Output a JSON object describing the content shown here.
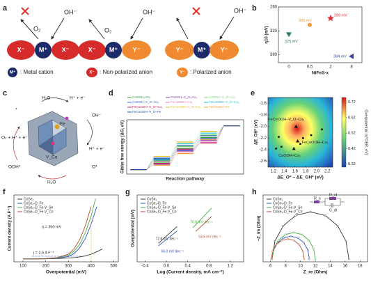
{
  "figure": {
    "a": {
      "label": "a",
      "ions": [
        "X⁻",
        "M⁺",
        "X⁻",
        "X⁻",
        "M⁺",
        "Y⁻",
        "Y⁻",
        "M⁺",
        "Y⁻"
      ],
      "products": [
        "O₂",
        "O₂"
      ],
      "reactants": [
        "OH⁻",
        "OH⁻",
        "OH⁻"
      ],
      "legend": [
        {
          "symbol": "M⁺",
          "text": ": Metal cation"
        },
        {
          "symbol": "X⁻",
          "text": ": Non-polarized anion"
        },
        {
          "symbol": "Y⁻",
          "text": ": Polarized anion"
        }
      ]
    },
    "c": {
      "label": "c",
      "texts": [
        "H₂O",
        "H⁺ + e⁻",
        "OH⁻",
        "O₂ + H⁺ + e⁻",
        "*",
        "Fe",
        "V_Co",
        "H⁺ + e⁻",
        "OOH*",
        "H₂O",
        "O*"
      ]
    }
  },
  "chart_data": [
    {
      "panel": "b",
      "type": "scatter",
      "x_label": "NiFeS-x",
      "y_label": "η10 (mV)",
      "categories": [
        "0",
        "0.5",
        "2",
        "8"
      ],
      "values": [
        329,
        305,
        288,
        384
      ],
      "value_labels": [
        "329 mV",
        "305 mV",
        "288 mV",
        "384 mV"
      ],
      "colors": [
        "#2e7d4f",
        "#f09a40",
        "#e03030",
        "#3a44a0"
      ],
      "ylim": [
        400,
        260
      ],
      "yticks": [
        260,
        320,
        380
      ]
    },
    {
      "panel": "d",
      "type": "energy",
      "x_label": "Reaction pathway",
      "y_label": "Gibbs free energy (ΔG, eV)",
      "ylim": [
        -0.5,
        5.6
      ],
      "series": [
        {
          "name": "CoOOH–Co₁",
          "color": "#2a9d3a",
          "values": [
            0,
            1.0,
            2.4,
            3.6,
            4.92
          ]
        },
        {
          "name": "CoOOH–V_O–Co₁",
          "color": "#8e44ad",
          "values": [
            0,
            0.6,
            2.1,
            3.3,
            4.92
          ]
        },
        {
          "name": "CoOOH–V_O–Co₂",
          "color": "#7dd87d",
          "values": [
            0,
            0.8,
            2.6,
            3.9,
            4.92
          ]
        },
        {
          "name": "CoOOH–V_O–Co₃",
          "color": "#3a6fd8",
          "values": [
            0,
            1.3,
            2.2,
            3.5,
            4.92
          ]
        },
        {
          "name": "FeCoOOH–Co₁",
          "color": "#e377c2",
          "values": [
            0,
            0.9,
            2.0,
            3.1,
            4.92
          ]
        },
        {
          "name": "FeCoOOH–V_O–Co₂",
          "color": "#17becf",
          "values": [
            0,
            1.1,
            2.9,
            4.1,
            4.92
          ]
        },
        {
          "name": "FeCoOOH–V_O–Co₁",
          "color": "#c2185b",
          "values": [
            0,
            0.7,
            2.3,
            3.0,
            4.92
          ]
        },
        {
          "name": "FeCoOOH–V_O–Co₃",
          "color": "#e0c020",
          "values": [
            0,
            1.5,
            3.1,
            4.3,
            4.92
          ]
        },
        {
          "name": "FeCoOOH–Fe",
          "color": "#f0a030",
          "values": [
            0,
            0.5,
            1.8,
            3.4,
            4.92
          ]
        },
        {
          "name": "FeCoOOH–V_O–Fe",
          "color": "#1f4fa0",
          "values": [
            0,
            1.2,
            2.7,
            3.8,
            4.92
          ]
        }
      ]
    },
    {
      "panel": "e",
      "type": "contour",
      "x_label": "ΔE_O* − ΔE_OH* (eV)",
      "y_label": "ΔE_OH* (eV)",
      "colorbar_label": "Overpotential (η^OER, eV)",
      "xlim": [
        1.1,
        2.3
      ],
      "xticks": [
        1.2,
        1.4,
        1.6,
        1.8,
        {
          "value": 2,
          "label": "2.0"
        },
        2.2
      ],
      "ylim": [
        -2.7,
        -1.5
      ],
      "yticks": [
        -1.6,
        -1.8,
        {
          "value": -2,
          "label": "-2.0"
        },
        -2.2,
        -2.4,
        -2.6
      ],
      "clim": [
        0.3,
        0.75
      ],
      "cticks": [
        0.72,
        0.62,
        0.52,
        0.42,
        0.32
      ],
      "labeled_points": {
        "names": [
          "FeCoOOH–V_O–Co₁",
          "FeCoOOH–Co₁",
          "CoOOH–Co₁"
        ],
        "x": [
          1.62,
          1.65,
          1.58
        ],
        "values": [
          -2.0,
          -2.25,
          -2.38
        ]
      },
      "other_points": {
        "x": [
          1.3,
          1.35,
          1.7,
          1.75,
          1.9,
          2.1,
          1.25
        ],
        "values": [
          -2.18,
          -2.35,
          -2.3,
          -2.2,
          -2.15,
          -2.05,
          -2.38
        ]
      }
    },
    {
      "panel": "f",
      "type": "line",
      "x_label": "Overpotential (mV)",
      "y_label": "Current density (A F⁻¹)",
      "xlim": [
        60,
        520
      ],
      "xticks": [
        100,
        200,
        300,
        400,
        500
      ],
      "ylim": [
        -2,
        55
      ],
      "annotations": [
        "η = 350 mV",
        "j = 2.5 A F⁻¹"
      ],
      "series": [
        {
          "name": "CoSe₂",
          "color": "#333333",
          "x": [
            100,
            150,
            200,
            250,
            300,
            325,
            350,
            375,
            400,
            425,
            450
          ],
          "values": [
            0.5,
            0.5,
            0.6,
            0.8,
            1.2,
            1.6,
            2.2,
            3,
            4.5,
            6.5,
            9
          ]
        },
        {
          "name": "CoSe₂-D_Fe",
          "color": "#3050c0",
          "x": [
            100,
            150,
            200,
            250,
            300,
            325,
            350,
            375,
            400,
            425
          ],
          "values": [
            0.5,
            0.5,
            0.6,
            1,
            2.5,
            5,
            10,
            18,
            30,
            45
          ]
        },
        {
          "name": "CoSe₂-D_Fe-V_Se",
          "color": "#40b040",
          "x": [
            100,
            150,
            200,
            250,
            300,
            325,
            350,
            375,
            400,
            420
          ],
          "values": [
            0.5,
            0.5,
            0.7,
            1.3,
            3.5,
            7,
            13,
            23,
            37,
            52
          ]
        },
        {
          "name": "CoSe₂-D_Fe-V_Co",
          "color": "#b05030",
          "x": [
            100,
            150,
            200,
            250,
            300,
            325,
            350,
            375,
            400
          ],
          "values": [
            0.5,
            0.5,
            0.8,
            1.6,
            4.5,
            9,
            17,
            29,
            45
          ]
        }
      ]
    },
    {
      "panel": "g",
      "type": "line",
      "x_label": "Log (Current density, mA cm⁻²)",
      "y_label": "Overpotential (mV)",
      "xlim": [
        -0.55,
        1.45
      ],
      "xticks": [
        -0.4,
        {
          "value": 0,
          "label": "0.0"
        },
        0.4,
        0.8,
        1.2
      ],
      "ylim": [
        200,
        380
      ],
      "series": [
        {
          "name": "CoSe₂",
          "color": "#333333",
          "x": [
            -0.15,
            0.2
          ],
          "values": [
            250,
            295
          ],
          "slope_label": "72.9 mV dec⁻¹"
        },
        {
          "name": "CoSe₂-D_Fe",
          "color": "#3050c0",
          "x": [
            -0.15,
            0.2
          ],
          "values": [
            243,
            283
          ],
          "slope_label": "66.0 mV dec⁻¹"
        },
        {
          "name": "CoSe₂-D_Fe-V_Se",
          "color": "#40b040",
          "x": [
            0.5,
            0.85
          ],
          "values": [
            292,
            345
          ],
          "slope_label": "76.5 mV dec⁻¹"
        },
        {
          "name": "CoSe₂-D_Fe-V_Co",
          "color": "#b05030",
          "x": [
            0.55,
            0.85
          ],
          "values": [
            282,
            322
          ],
          "slope_label": "53.5 mV dec⁻¹"
        }
      ]
    },
    {
      "panel": "h",
      "type": "line",
      "markers": true,
      "x_label": "Z_re (Ohm)",
      "y_label": "−Z_im (Ohm)",
      "xlim": [
        5,
        19
      ],
      "xticks": [
        6,
        8,
        10,
        12,
        14,
        16,
        18
      ],
      "ylim": [
        -0.3,
        7
      ],
      "circuit": [
        "R_s",
        "R_ct",
        "C_dl"
      ],
      "series": [
        {
          "name": "CoSe₂",
          "color": "#333333",
          "x": [
            16.5,
            16.11,
            14.99,
            13.32,
            11.35,
            9.38,
            7.71,
            6.59,
            6.2
          ],
          "values": [
            0,
            1.97,
            3.64,
            4.76,
            5.15,
            4.76,
            3.64,
            1.97,
            0
          ]
        },
        {
          "name": "CoSe₂-D_Fe",
          "color": "#3050c0",
          "x": [
            11.2,
            11.01,
            10.47,
            9.66,
            8.7,
            7.74,
            6.93,
            6.39,
            6.2
          ],
          "values": [
            0,
            0.96,
            1.77,
            2.31,
            2.5,
            2.31,
            1.77,
            0.96,
            0
          ]
        },
        {
          "name": "CoSe₂-D_Fe-V_Se",
          "color": "#40b040",
          "x": [
            12.0,
            11.78,
            11.15,
            10.21,
            9.1,
            7.99,
            7.05,
            6.42,
            6.2
          ],
          "values": [
            0,
            1.11,
            2.05,
            2.68,
            2.9,
            2.68,
            2.05,
            1.11,
            0
          ]
        },
        {
          "name": "CoSe₂-D_Fe-V_Co",
          "color": "#b05030",
          "x": [
            10.5,
            10.33,
            9.86,
            9.14,
            8.3,
            7.46,
            6.74,
            6.27,
            6.1
          ],
          "values": [
            0,
            0.84,
            1.56,
            2.03,
            2.2,
            2.03,
            1.56,
            0.84,
            0
          ]
        }
      ]
    }
  ]
}
